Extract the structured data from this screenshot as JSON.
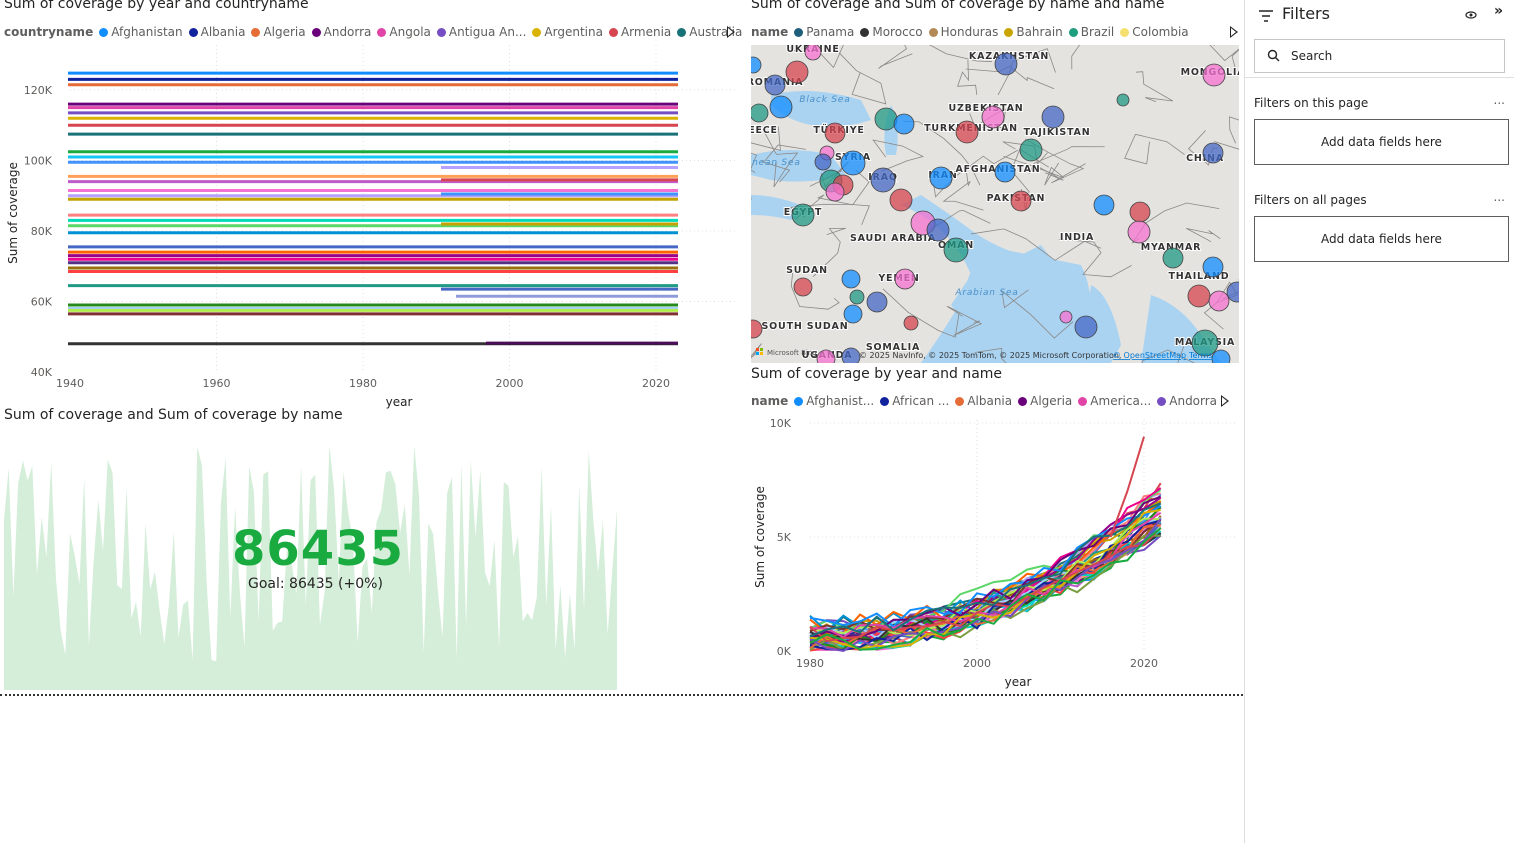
{
  "chart1": {
    "title": "Sum of coverage by year and countryname",
    "legend_title": "countryname",
    "legend": [
      {
        "name": "Afghanistan",
        "color": "#118DFF"
      },
      {
        "name": "Albania",
        "color": "#12239E"
      },
      {
        "name": "Algeria",
        "color": "#E66C37"
      },
      {
        "name": "Andorra",
        "color": "#6B007B"
      },
      {
        "name": "Angola",
        "color": "#E044A7"
      },
      {
        "name": "Antigua An...",
        "color": "#744EC2"
      },
      {
        "name": "Argentina",
        "color": "#D9B300"
      },
      {
        "name": "Armenia",
        "color": "#D64550"
      },
      {
        "name": "Australia",
        "color": "#197278"
      }
    ],
    "y_label": "Sum of coverage",
    "x_label": "year",
    "y_ticks": [
      "120K",
      "100K",
      "80K",
      "60K",
      "40K"
    ],
    "x_ticks": [
      "1940",
      "1960",
      "1980",
      "2000",
      "2020"
    ]
  },
  "chart2": {
    "title": "Sum of coverage and Sum of coverage by name and name",
    "legend_title": "name",
    "legend": [
      {
        "name": "Panama",
        "color": "#1F5E7A"
      },
      {
        "name": "Morocco",
        "color": "#333333"
      },
      {
        "name": "Honduras",
        "color": "#B38A57"
      },
      {
        "name": "Bahrain",
        "color": "#C8A500"
      },
      {
        "name": "Brazil",
        "color": "#1E9E7E"
      },
      {
        "name": "Colombia",
        "color": "#F5E06E"
      }
    ],
    "map_labels": [
      {
        "text": "UKRAINE"
      },
      {
        "text": "KAZAKHSTAN"
      },
      {
        "text": "MONGOLIA"
      },
      {
        "text": "ROMANIA"
      },
      {
        "text": "Black Sea"
      },
      {
        "text": "UZBEKISTAN"
      },
      {
        "text": "TÜRKIYE"
      },
      {
        "text": "TURKMENISTAN"
      },
      {
        "text": "TAJIKISTAN"
      },
      {
        "text": "EECE"
      },
      {
        "text": "SYRIA"
      },
      {
        "text": "CHINA"
      },
      {
        "text": "ranean Sea"
      },
      {
        "text": "IRAQ"
      },
      {
        "text": "IRAN"
      },
      {
        "text": "AFGHANISTAN"
      },
      {
        "text": "PAKISTAN"
      },
      {
        "text": "EGYPT"
      },
      {
        "text": "SAUDI ARABIA"
      },
      {
        "text": "OMAN"
      },
      {
        "text": "INDIA"
      },
      {
        "text": "MYANMAR"
      },
      {
        "text": "SUDAN"
      },
      {
        "text": "YEMEN"
      },
      {
        "text": "THAILAND"
      },
      {
        "text": "Arabian Sea"
      },
      {
        "text": "SOUTH SUDAN"
      },
      {
        "text": "SOMALIA"
      },
      {
        "text": "MALAYSIA"
      },
      {
        "text": "UGANDA"
      }
    ],
    "attribution": "© 2025 NavInfo, © 2025 TomTom, © 2025 Microsoft Corporation,",
    "attribution_link": "© OpenStreetMap",
    "terms": "Terms",
    "ms_logo": "Microsoft Bing"
  },
  "chart3": {
    "title": "Sum of coverage and Sum of coverage by name",
    "kpi_value": "86435",
    "goal": "Goal: 86435 (+0%)"
  },
  "chart4": {
    "title": "Sum of coverage by year and name",
    "legend_title": "name",
    "legend": [
      {
        "name": "Afghanist...",
        "color": "#118DFF"
      },
      {
        "name": "African ...",
        "color": "#12239E"
      },
      {
        "name": "Albania",
        "color": "#E66C37"
      },
      {
        "name": "Algeria",
        "color": "#6B007B"
      },
      {
        "name": "America...",
        "color": "#E044A7"
      },
      {
        "name": "Andorra",
        "color": "#744EC2"
      }
    ],
    "y_label": "Sum of coverage",
    "x_label": "year",
    "y_ticks": [
      "10K",
      "5K",
      "0K"
    ],
    "x_ticks": [
      "1980",
      "2000",
      "2020"
    ]
  },
  "filters": {
    "title": "Filters",
    "search_placeholder": "Search",
    "section1": "Filters on this page",
    "section2": "Filters on all pages",
    "add_fields": "Add data fields here",
    "more": "..."
  }
}
